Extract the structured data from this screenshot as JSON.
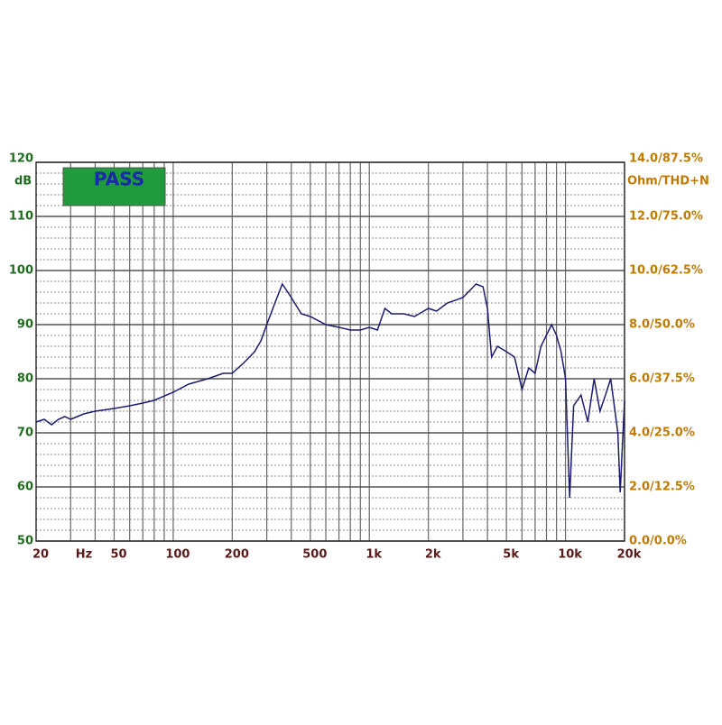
{
  "chart_data": {
    "type": "line",
    "badge": "PASS",
    "y_label": "dB",
    "y2_label": "Ohm/THD+N",
    "x_label": "Hz",
    "xscale": "log",
    "xlim": [
      20,
      20000
    ],
    "ylim": [
      50,
      120
    ],
    "y2lim": [
      0,
      14
    ],
    "color": "#1c1c70",
    "xticks": [
      20,
      50,
      100,
      200,
      500,
      {
        "value": 1000,
        "label": "1k"
      },
      {
        "value": 2000,
        "label": "2k"
      },
      {
        "value": 5000,
        "label": "5k"
      },
      {
        "value": 10000,
        "label": "10k"
      },
      {
        "value": 20000,
        "label": "20k"
      }
    ],
    "xgrid": [
      30,
      40,
      50,
      60,
      70,
      80,
      90,
      100,
      200,
      300,
      400,
      500,
      600,
      700,
      800,
      900,
      1000,
      2000,
      3000,
      4000,
      5000,
      6000,
      7000,
      8000,
      9000,
      10000,
      20000
    ],
    "yticks": [
      50,
      60,
      70,
      80,
      90,
      100,
      110,
      120
    ],
    "minor_yticks": [
      52,
      54,
      56,
      58,
      62,
      64,
      66,
      68,
      72,
      74,
      76,
      78,
      82,
      84,
      86,
      88,
      92,
      94,
      96,
      98,
      102,
      104,
      106,
      108,
      112,
      114,
      116,
      118
    ],
    "y2ticks": [
      {
        "value": 0,
        "label": "0.0/0.0%"
      },
      {
        "value": 2,
        "label": "2.0/12.5%"
      },
      {
        "value": 4,
        "label": "4.0/25.0%"
      },
      {
        "value": 6,
        "label": "6.0/37.5%"
      },
      {
        "value": 8,
        "label": "8.0/50.0%"
      },
      {
        "value": 10,
        "label": "10.0/62.5%"
      },
      {
        "value": 12,
        "label": "12.0/75.0%"
      },
      {
        "value": 14,
        "label": "14.0/87.5%"
      }
    ],
    "x": [
      20,
      22,
      24,
      26,
      28,
      30,
      35,
      40,
      50,
      60,
      70,
      80,
      100,
      120,
      150,
      180,
      200,
      230,
      260,
      280,
      300,
      330,
      360,
      400,
      450,
      500,
      600,
      700,
      800,
      900,
      1000,
      1100,
      1200,
      1300,
      1500,
      1700,
      2000,
      2200,
      2500,
      3000,
      3500,
      3800,
      4000,
      4200,
      4500,
      5000,
      5500,
      6000,
      6500,
      7000,
      7500,
      8500,
      9000,
      9500,
      10000,
      10500,
      11000,
      12000,
      13000,
      14000,
      15000,
      16000,
      17000,
      18500,
      19000,
      20000
    ],
    "values": [
      72,
      72.5,
      71.5,
      72.5,
      73,
      72.5,
      73.5,
      74,
      74.5,
      75,
      75.5,
      76,
      77.5,
      79,
      80,
      81,
      81,
      83,
      85,
      87,
      90,
      94,
      97.5,
      95,
      92,
      91.5,
      90,
      89.5,
      89,
      89,
      89.5,
      89,
      93,
      92,
      92,
      91.5,
      93,
      92.5,
      94,
      95,
      97.5,
      97,
      93,
      84,
      86,
      85,
      84,
      78,
      82,
      81,
      86,
      90,
      88,
      85,
      80,
      58,
      75,
      77,
      72,
      80,
      74,
      77,
      80,
      70,
      59,
      76
    ]
  }
}
